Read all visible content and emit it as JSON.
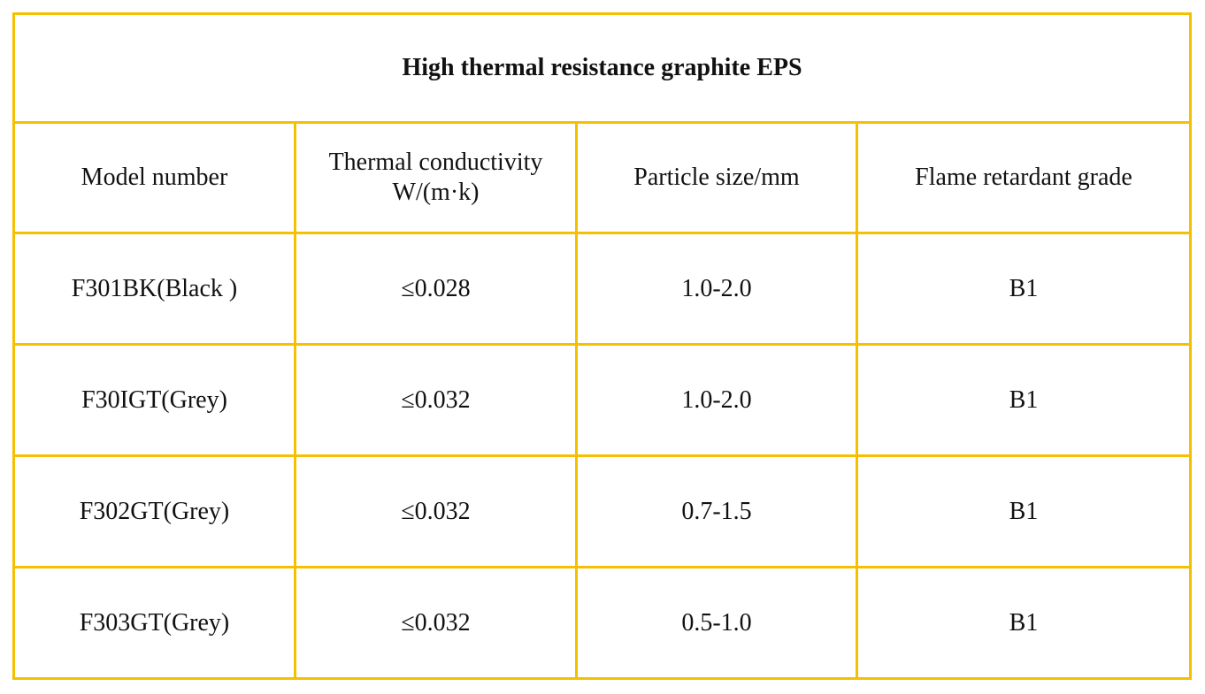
{
  "table": {
    "title": "High thermal resistance graphite EPS",
    "border_color": "#F5C000",
    "headers": [
      "Model number",
      "Thermal conductivity\nW/(m·k)",
      "Particle size/mm",
      "Flame retardant grade"
    ],
    "rows": [
      [
        "F301BK(Black )",
        "≤0.028",
        "1.0-2.0",
        "B1"
      ],
      [
        "F30IGT(Grey)",
        "≤0.032",
        "1.0-2.0",
        "B1"
      ],
      [
        "F302GT(Grey)",
        "≤0.032",
        "0.7-1.5",
        "B1"
      ],
      [
        "F303GT(Grey)",
        "≤0.032",
        "0.5-1.0",
        "B1"
      ]
    ]
  }
}
